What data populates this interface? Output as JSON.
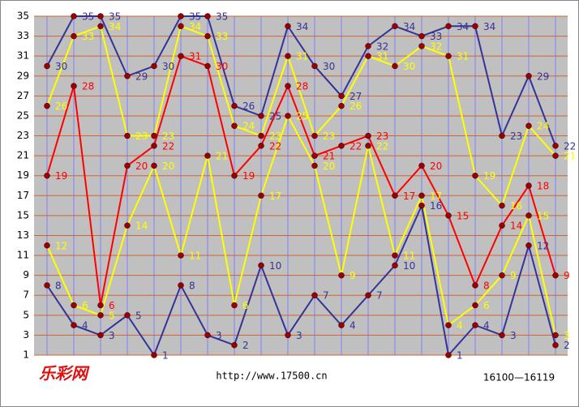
{
  "chart_data": {
    "type": "line",
    "categories": [
      null,
      null,
      null,
      null,
      null,
      null,
      null,
      null,
      null,
      null,
      null,
      null,
      null,
      null,
      null,
      null,
      null,
      null,
      null,
      null
    ],
    "ylim": [
      1,
      35
    ],
    "yticks": [
      1,
      3,
      5,
      7,
      9,
      11,
      13,
      15,
      17,
      19,
      21,
      23,
      25,
      27,
      29,
      31,
      33,
      35
    ],
    "grid": true,
    "series": [
      {
        "color": "#333399",
        "values": [
          30,
          35,
          35,
          29,
          30,
          35,
          35,
          26,
          25,
          34,
          30,
          27,
          32,
          34,
          33,
          34,
          34,
          23,
          29,
          22
        ]
      },
      {
        "color": "#ffff00",
        "values": [
          26,
          33,
          34,
          23,
          23,
          34,
          33,
          24,
          23,
          31,
          23,
          26,
          31,
          30,
          32,
          31,
          19,
          16,
          24,
          21
        ]
      },
      {
        "color": "#ff0000",
        "values": [
          19,
          28,
          6,
          20,
          22,
          31,
          30,
          19,
          22,
          28,
          21,
          22,
          23,
          17,
          20,
          15,
          8,
          14,
          18,
          9
        ]
      },
      {
        "color": "#ffff00",
        "values": [
          12,
          6,
          5,
          14,
          20,
          11,
          21,
          6,
          17,
          25,
          20,
          9,
          22,
          11,
          17,
          4,
          6,
          9,
          15,
          3
        ]
      },
      {
        "color": "#333399",
        "values": [
          8,
          4,
          3,
          5,
          1,
          8,
          3,
          2,
          10,
          3,
          7,
          4,
          7,
          10,
          16,
          1,
          4,
          3,
          12,
          2
        ]
      }
    ]
  },
  "footer": {
    "logo": "乐彩网",
    "url": "http://www.17500.cn",
    "range": "16100—16119"
  }
}
